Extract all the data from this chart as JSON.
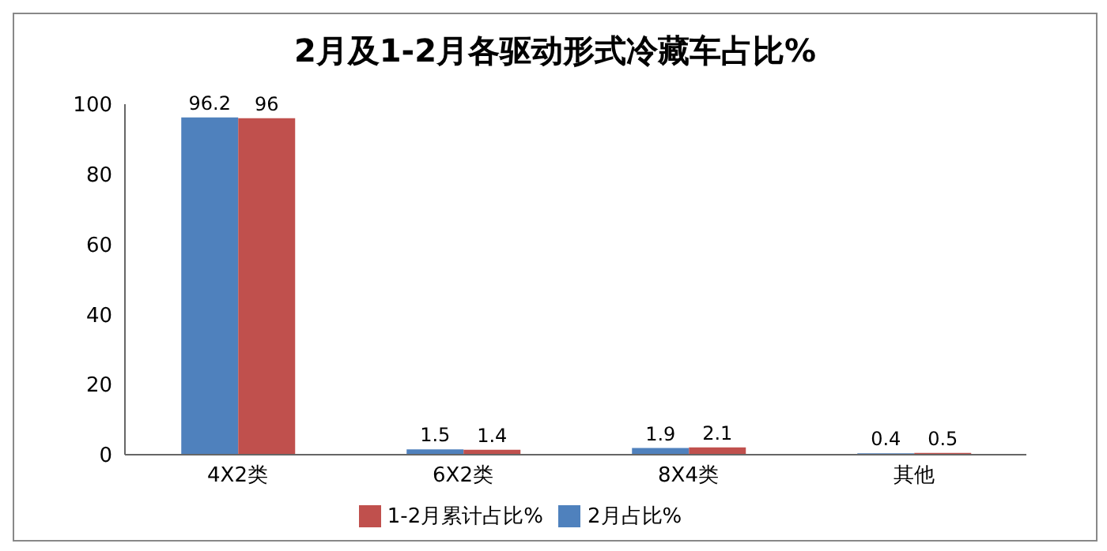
{
  "chart_data": {
    "type": "bar",
    "title": "2月及1-2月各驱动形式冷藏车占比%",
    "categories": [
      "4X2类",
      "6X2类",
      "8X4类",
      "其他"
    ],
    "series": [
      {
        "name": "2月占比%",
        "color": "#4f81bd",
        "values": [
          96.2,
          1.5,
          1.9,
          0.4
        ]
      },
      {
        "name": "1-2月累计占比%",
        "color": "#c0504d",
        "values": [
          96,
          1.4,
          2.1,
          0.5
        ]
      }
    ],
    "ylim": [
      0,
      100
    ],
    "yticks": [
      0,
      20,
      40,
      60,
      80,
      100
    ],
    "data_labels": true,
    "legend": "bottom",
    "grid": false
  }
}
